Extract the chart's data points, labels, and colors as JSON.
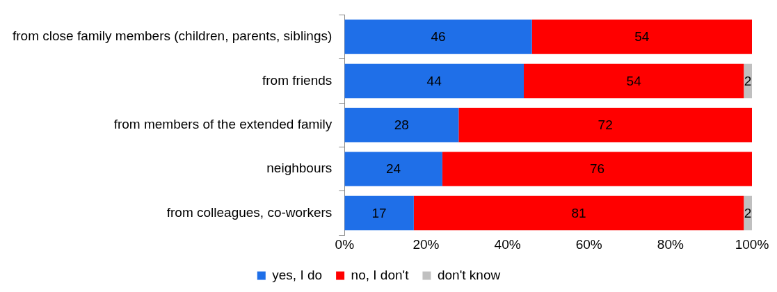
{
  "chart_data": {
    "type": "bar",
    "orientation": "horizontal",
    "stacked": true,
    "categories": [
      "from close family members (children, parents, siblings)",
      "from friends",
      "from members of the extended family",
      "neighbours",
      "from colleagues, co-workers"
    ],
    "series": [
      {
        "name": "yes, I do",
        "color": "#1f6fe8",
        "values": [
          46,
          44,
          28,
          24,
          17
        ]
      },
      {
        "name": "no, I don't",
        "color": "#ff0000",
        "values": [
          54,
          54,
          72,
          76,
          81
        ]
      },
      {
        "name": "don't know",
        "color": "#c0c0c0",
        "values": [
          null,
          2,
          null,
          null,
          2
        ]
      }
    ],
    "xlim": [
      0,
      100
    ],
    "xticks": [
      {
        "value": 0,
        "label": "0%"
      },
      {
        "value": 20,
        "label": "20%"
      },
      {
        "value": 40,
        "label": "40%"
      },
      {
        "value": 60,
        "label": "60%"
      },
      {
        "value": 80,
        "label": "80%"
      },
      {
        "value": 100,
        "label": "100%"
      }
    ],
    "grid": false,
    "legend": "bottom",
    "data_labels": true
  }
}
